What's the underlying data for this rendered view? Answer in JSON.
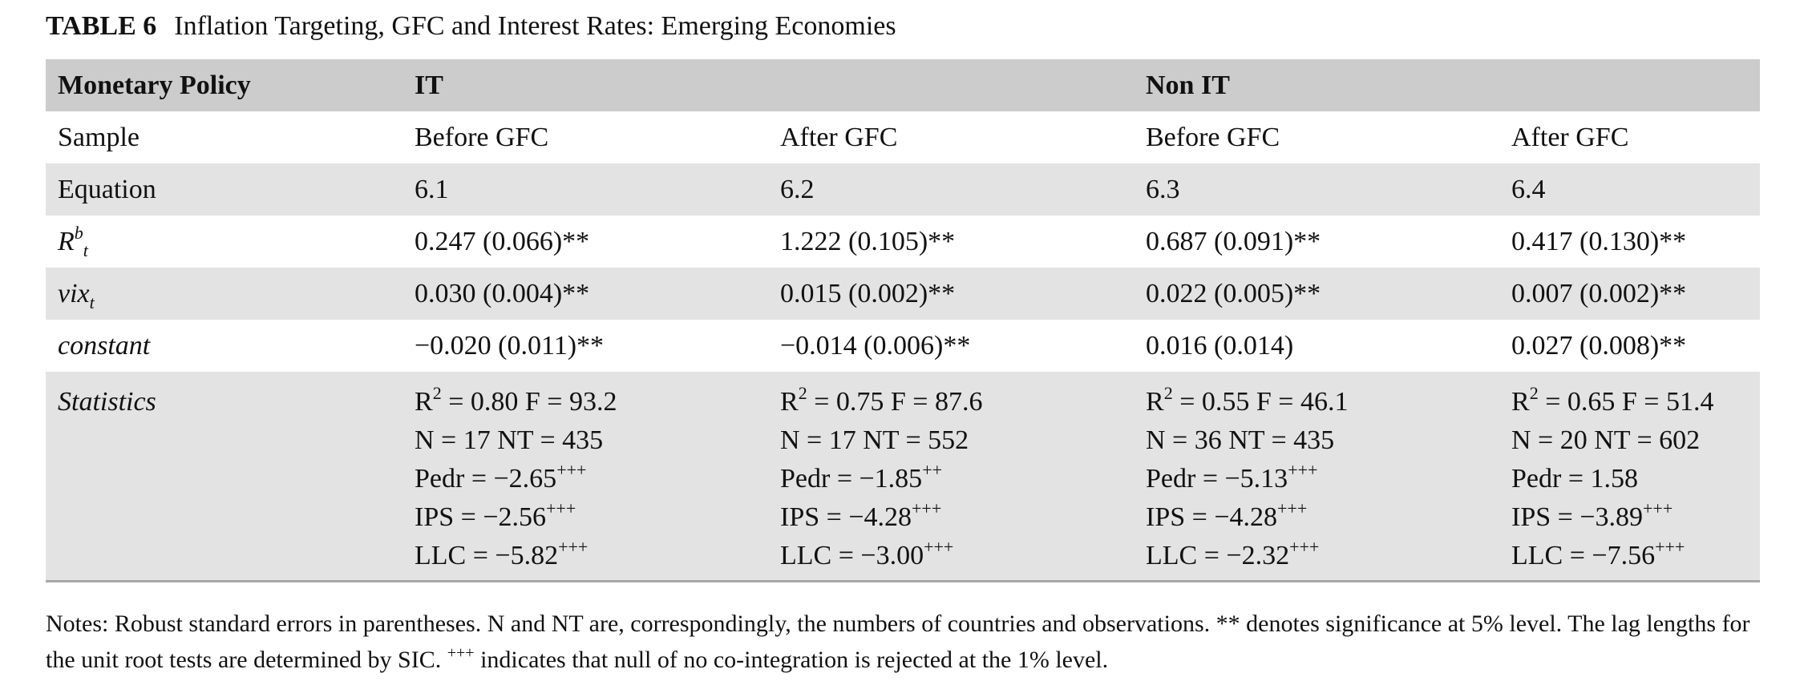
{
  "caption": {
    "label": "TABLE 6",
    "title": "Inflation Targeting, GFC and Interest Rates: Emerging Economies"
  },
  "header": {
    "col0": "Monetary Policy",
    "group1": "IT",
    "group2": "Non IT"
  },
  "rows": {
    "sample": {
      "label": "Sample",
      "cells": [
        "Before GFC",
        "After GFC",
        "Before GFC",
        "After GFC"
      ]
    },
    "equation": {
      "label": "Equation",
      "cells": [
        "6.1",
        "6.2",
        "6.3",
        "6.4"
      ]
    },
    "rbt": {
      "label_main": "R",
      "label_sup": "b",
      "label_sub": "t",
      "cells": [
        "0.247 (0.066)**",
        "1.222 (0.105)**",
        "0.687 (0.091)**",
        "0.417 (0.130)**"
      ]
    },
    "vix": {
      "label_main": "vix",
      "label_sub": "t",
      "cells": [
        "0.030 (0.004)**",
        "0.015 (0.002)**",
        "0.022 (0.005)**",
        "0.007 (0.002)**"
      ]
    },
    "constant": {
      "label": "constant",
      "cells": [
        "−0.020 (0.011)**",
        "−0.014 (0.006)**",
        "0.016 (0.014)",
        "0.027 (0.008)**"
      ]
    },
    "statistics": {
      "label": "Statistics",
      "cols": [
        {
          "r2": "0.80",
          "f": "93.2",
          "n": "17",
          "nt": "435",
          "pedr": "−2.65",
          "pedr_sig": "+++",
          "ips": "−2.56",
          "ips_sig": "+++",
          "llc": "−5.82",
          "llc_sig": "+++"
        },
        {
          "r2": "0.75",
          "f": "87.6",
          "n": "17",
          "nt": "552",
          "pedr": "−1.85",
          "pedr_sig": "++",
          "ips": "−4.28",
          "ips_sig": "+++",
          "llc": "−3.00",
          "llc_sig": "+++"
        },
        {
          "r2": "0.55",
          "f": "46.1",
          "n": "36",
          "nt": "435",
          "pedr": "−5.13",
          "pedr_sig": "+++",
          "ips": "−4.28",
          "ips_sig": "+++",
          "llc": "−2.32",
          "llc_sig": "+++"
        },
        {
          "r2": "0.65",
          "f": "51.4",
          "n": "20",
          "nt": "602",
          "pedr": "1.58",
          "pedr_sig": "",
          "ips": "−3.89",
          "ips_sig": "+++",
          "llc": "−7.56",
          "llc_sig": "+++"
        }
      ]
    }
  },
  "notes": {
    "part1": "Notes: Robust standard errors in parentheses. N and NT are, correspondingly, the numbers of countries and observations. ** denotes significance at 5% level. The lag lengths for the unit root tests are determined by SIC.",
    "sup": "+++",
    "part2": "indicates that null of no co-integration is rejected at the 1% level."
  }
}
